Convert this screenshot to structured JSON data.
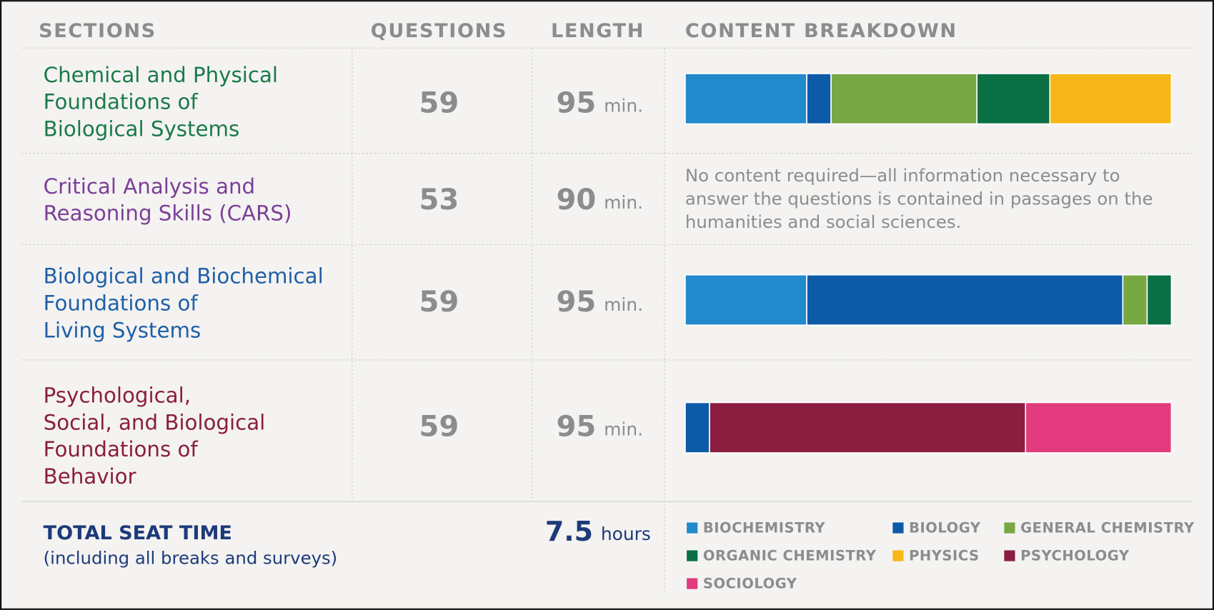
{
  "header": {
    "sections": "SECTIONS",
    "questions": "QUESTIONS",
    "length": "LENGTH",
    "breakdown": "CONTENT BREAKDOWN"
  },
  "rows": [
    {
      "section": [
        "Chemical and Physical",
        "Foundations of",
        "Biological Systems"
      ],
      "color": "#1a7a4a",
      "questions": 59,
      "length": 95,
      "unit": "min."
    },
    {
      "section": [
        "Critical Analysis and",
        "Reasoning Skills (CARS)"
      ],
      "color": "#7b3f98",
      "questions": 53,
      "length": 90,
      "unit": "min.",
      "note": [
        "No content required—all information necessary to",
        "answer the questions is contained in passages on the",
        "humanities and social sciences."
      ]
    },
    {
      "section": [
        "Biological and Biochemical",
        "Foundations of",
        "Living Systems"
      ],
      "color": "#1f5fa8",
      "questions": 59,
      "length": 95,
      "unit": "min."
    },
    {
      "section": [
        "Psychological,",
        "Social, and Biological",
        "Foundations of",
        "Behavior"
      ],
      "color": "#8b1d40",
      "questions": 59,
      "length": 95,
      "unit": "min."
    }
  ],
  "total": {
    "label": "TOTAL SEAT TIME",
    "note": "(including all breaks and surveys)",
    "value": 7.5,
    "unit": "hours"
  },
  "chart_data": {
    "type": "bar",
    "orientation": "horizontal",
    "stacked": true,
    "xlim": [
      0,
      100
    ],
    "series": [
      {
        "name": "BIOCHEMISTRY",
        "color": "#2289cc",
        "values": [
          25,
          null,
          25,
          0
        ]
      },
      {
        "name": "BIOLOGY",
        "color": "#0d5aa7",
        "values": [
          5,
          null,
          65,
          5
        ]
      },
      {
        "name": "GENERAL CHEMISTRY",
        "color": "#77a844",
        "values": [
          30,
          null,
          5,
          0
        ]
      },
      {
        "name": "ORGANIC CHEMISTRY",
        "color": "#0a6f45",
        "values": [
          15,
          null,
          5,
          0
        ]
      },
      {
        "name": "PHYSICS",
        "color": "#f7b718",
        "values": [
          25,
          null,
          0,
          0
        ]
      },
      {
        "name": "PSYCHOLOGY",
        "color": "#8b1d40",
        "values": [
          0,
          null,
          0,
          65
        ]
      },
      {
        "name": "SOCIOLOGY",
        "color": "#e23a7c",
        "values": [
          0,
          null,
          0,
          30
        ]
      }
    ]
  }
}
